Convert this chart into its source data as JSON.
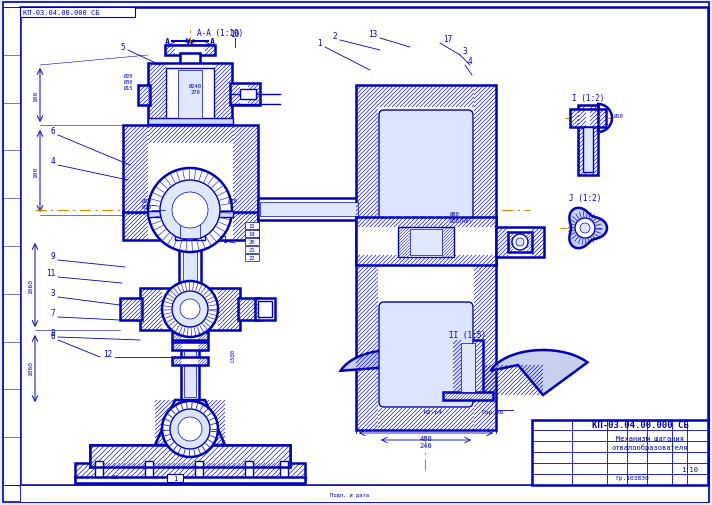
{
  "bg_color": "#e8eef8",
  "paper_color": "#ffffff",
  "border_color": "#0000bb",
  "line_color": "#0000bb",
  "hatch_color": "#0000bb",
  "orange_color": "#cc8800",
  "fill_hatch": "#c8d0f0",
  "title_text": "КП-03.04.00.000 СБ",
  "top_label": "КП-03.04.00.000 СБ",
  "subtitle1": "Механизм шагания",
  "subtitle2": "отвалообразователя",
  "scale": "1:10",
  "group": "Гр.103830",
  "section_label": "А-А (1:10)",
  "lw_thick": 1.8,
  "lw_med": 1.0,
  "lw_thin": 0.5
}
